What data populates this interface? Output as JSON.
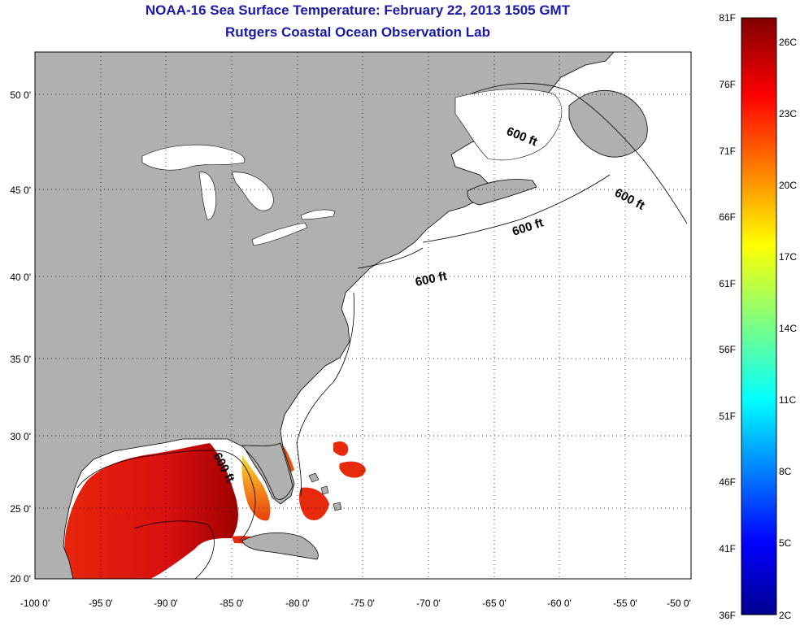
{
  "title": "NOAA-16 Sea Surface Temperature:  February 22, 2013 1505 GMT",
  "subtitle": "Rutgers Coastal Ocean Observation Lab",
  "map": {
    "lon_range": [
      -100,
      -50
    ],
    "lat_range": [
      20,
      52.5
    ],
    "x_ticks": [
      "-100 0'",
      "-95 0'",
      "-90 0'",
      "-85 0'",
      "-80 0'",
      "-75 0'",
      "-70 0'",
      "-65 0'",
      "-60 0'",
      "-55 0'",
      "-50 0'"
    ],
    "y_ticks": [
      "50 0'",
      "45 0'",
      "40 0'",
      "35 0'",
      "30 0'",
      "25 0'",
      "20 0'"
    ],
    "grid": "dotted",
    "land_color": "#b0b0b0",
    "ocean_color": "#ffffff",
    "contour_labels": [
      "600 ft",
      "600 ft",
      "600 ft",
      "600 ft",
      "600 ft"
    ]
  },
  "colorbar": {
    "fahrenheit_labels": [
      "81F",
      "76F",
      "71F",
      "66F",
      "61F",
      "56F",
      "51F",
      "46F",
      "41F",
      "36F"
    ],
    "celsius_labels": [
      "26C",
      "23C",
      "20C",
      "17C",
      "14C",
      "11C",
      "8C",
      "5C",
      "2C"
    ],
    "colormap": "jet",
    "range_f": [
      36,
      81
    ]
  }
}
